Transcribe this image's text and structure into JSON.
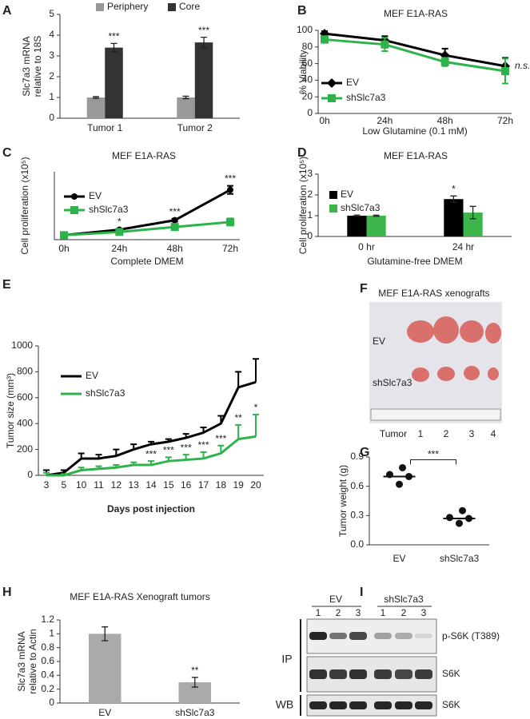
{
  "chart_data": [
    {
      "panel": "A",
      "type": "bar",
      "categories": [
        "Tumor 1",
        "Tumor 2"
      ],
      "ylabel": [
        "Slc7a3 mRNA",
        "relative to 18S"
      ],
      "ylim": [
        0,
        5
      ],
      "yticks": [
        0,
        1,
        2,
        3,
        4,
        5
      ],
      "legend": "top",
      "series": [
        {
          "name": "Periphery",
          "color": "#999999",
          "values": [
            1,
            1
          ],
          "errors": [
            0.04,
            0.06
          ]
        },
        {
          "name": "Core",
          "color": "#333333",
          "values": [
            3.4,
            3.65
          ],
          "errors": [
            0.2,
            0.25
          ]
        }
      ],
      "annotations": [
        "***",
        "***"
      ]
    },
    {
      "panel": "B",
      "type": "line",
      "title": "MEF E1A-RAS",
      "categories": [
        "0h",
        "24h",
        "48h",
        "72h"
      ],
      "xlabel": "Low Glutamine (0.1 mM)",
      "ylabel": "% Viability",
      "ylim": [
        0,
        100
      ],
      "yticks": [
        0,
        20,
        40,
        60,
        80,
        100
      ],
      "legend": "left",
      "series": [
        {
          "name": "EV",
          "color": "#000000",
          "marker": "diamond",
          "values": [
            96,
            88,
            70,
            57
          ],
          "errors": [
            3,
            5,
            8,
            10
          ]
        },
        {
          "name": "shSlc7a3",
          "color": "#2eb34b",
          "marker": "square",
          "values": [
            89,
            83,
            62,
            51
          ],
          "errors": [
            4,
            8,
            5,
            15
          ]
        }
      ],
      "annotations": [
        null,
        null,
        null,
        "n.s."
      ]
    },
    {
      "panel": "C",
      "type": "line",
      "title": "MEF E1A-RAS",
      "categories": [
        "0h",
        "24h",
        "48h",
        "72h"
      ],
      "xlabel": "Complete DMEM",
      "ylabel": "Cell proliferation (x10⁵)",
      "ylim": [
        0,
        15
      ],
      "legend": "upper left",
      "series": [
        {
          "name": "EV",
          "color": "#000000",
          "marker": "circle",
          "values": [
            1,
            2.2,
            4.3,
            11
          ],
          "errors": [
            0.1,
            0.2,
            0.3,
            0.9
          ]
        },
        {
          "name": "shSlc7a3",
          "color": "#2eb34b",
          "marker": "square",
          "values": [
            1,
            1.7,
            2.8,
            3.9
          ],
          "errors": [
            0.1,
            0.2,
            0.2,
            0.8
          ]
        }
      ],
      "annotations": [
        null,
        "*",
        "***",
        "***"
      ]
    },
    {
      "panel": "D",
      "type": "bar",
      "title": "MEF E1A-RAS",
      "categories": [
        "0 hr",
        "24 hr"
      ],
      "xlabel": "Glutamine-free DMEM",
      "ylabel": "Cell proliferation (x10⁵)",
      "ylim": [
        0,
        3
      ],
      "yticks": [
        0,
        1,
        2,
        3
      ],
      "legend": "upper left",
      "series": [
        {
          "name": "EV",
          "color": "#000000",
          "values": [
            1,
            1.8
          ],
          "errors": [
            0.03,
            0.15
          ]
        },
        {
          "name": "shSlc7a3",
          "color": "#3cb54a",
          "values": [
            1,
            1.15
          ],
          "errors": [
            0.03,
            0.3
          ]
        }
      ],
      "annotations": [
        null,
        "*"
      ]
    },
    {
      "panel": "E",
      "type": "line",
      "categories": [
        "3",
        "5",
        "10",
        "11",
        "12",
        "13",
        "14",
        "15",
        "16",
        "17",
        "18",
        "19",
        "20"
      ],
      "xlabel": "Days post injection",
      "ylabel": "Tumor size (mm³)",
      "ylim": [
        0,
        1000
      ],
      "yticks": [
        0,
        200,
        400,
        600,
        800,
        1000
      ],
      "legend": "upper left",
      "error_bars": "up",
      "series": [
        {
          "name": "EV",
          "color": "#000000",
          "values": [
            0,
            20,
            130,
            130,
            150,
            200,
            240,
            260,
            290,
            330,
            400,
            680,
            720
          ],
          "errors": [
            40,
            20,
            40,
            30,
            50,
            40,
            20,
            20,
            30,
            40,
            60,
            120,
            180
          ]
        },
        {
          "name": "shSlc7a3",
          "color": "#2eb34b",
          "values": [
            0,
            0,
            40,
            50,
            60,
            80,
            80,
            110,
            120,
            130,
            170,
            280,
            300
          ],
          "errors": [
            20,
            10,
            20,
            20,
            20,
            20,
            30,
            30,
            40,
            50,
            60,
            110,
            170
          ]
        }
      ],
      "annotations": [
        null,
        null,
        null,
        null,
        null,
        null,
        "***",
        "***",
        "***",
        "***",
        "***",
        "**",
        "*"
      ]
    },
    {
      "panel": "G",
      "type": "strip",
      "categories": [
        "EV",
        "shSlc7a3"
      ],
      "ylabel": "Tumor weight (g)",
      "ylim": [
        0,
        0.9
      ],
      "yticks": [
        {
          "value": 0,
          "label": "0.0"
        },
        0.3,
        0.6,
        0.9
      ],
      "points": [
        [
          0.79,
          0.72,
          0.7,
          0.62
        ],
        [
          0.35,
          0.28,
          0.27,
          0.22
        ]
      ],
      "means": [
        0.7,
        0.27
      ],
      "annotation": "***"
    },
    {
      "panel": "H",
      "type": "bar",
      "title": "MEF E1A-RAS Xenograft tumors",
      "categories": [
        "EV",
        "shSlc7a3"
      ],
      "ylabel": [
        "Slc7a3 mRNA",
        "relative to Actin"
      ],
      "ylim": [
        0,
        1.2
      ],
      "yticks": [
        0,
        0.2,
        0.4,
        0.6,
        0.8,
        1,
        1.2
      ],
      "values": [
        1,
        0.3
      ],
      "errors": [
        0.1,
        0.07
      ],
      "color": "#aaaaaa",
      "annotations": [
        null,
        "**"
      ]
    }
  ],
  "xenograft": {
    "panel": "F",
    "title": "MEF E1A-RAS xenografts",
    "rows": [
      "EV",
      "shSlc7a3"
    ],
    "column_label": "Tumor",
    "columns": [
      "1",
      "2",
      "3",
      "4"
    ]
  },
  "blot": {
    "panel": "I",
    "groups": [
      "EV",
      "shSlc7a3"
    ],
    "lanes": [
      "1",
      "2",
      "3",
      "1",
      "2",
      "3"
    ],
    "sections": [
      "IP",
      "WB"
    ],
    "bands": [
      "p-S6K (T389)",
      "S6K",
      "S6K"
    ]
  }
}
